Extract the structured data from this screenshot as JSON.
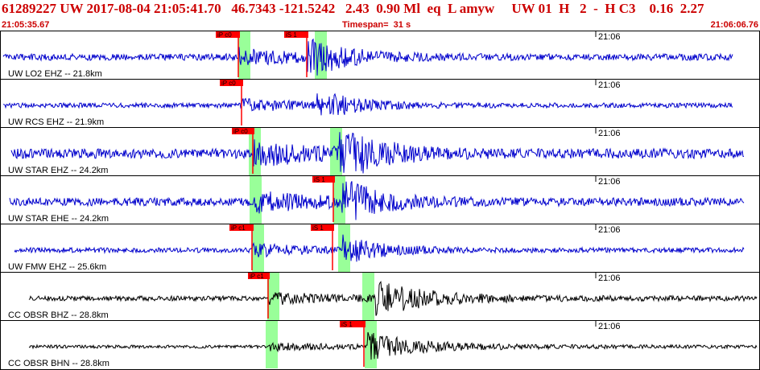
{
  "header": {
    "title_line": "61289227 UW 2017-08-04 21:05:41.70   46.7343 -121.5242   2.43  0.90 Ml  eq  L amyw     UW 01  H   2  -  H C3    0.16  2.27",
    "start_time": "21:05:35.67",
    "timespan": "Timespan=  31 s",
    "end_time": "21:06:06.76"
  },
  "colors": {
    "header_text": "#cc0000",
    "trace_blue": "#0000cc",
    "trace_black": "#000000",
    "pick_red": "#ff0000",
    "window_green": "#99ff99"
  },
  "traces": [
    {
      "label": "UW LO2 EHZ -- 21.8km",
      "time_tick": "21:06",
      "picks": [
        {
          "text": "iP c0"
        },
        {
          "text": "iS 1"
        }
      ]
    },
    {
      "label": "UW RCS EHZ -- 21.9km",
      "time_tick": "21:06",
      "picks": [
        {
          "text": "iP c0"
        }
      ]
    },
    {
      "label": "UW STAR EHZ -- 24.2km",
      "time_tick": "21:06",
      "picks": [
        {
          "text": "iP c0"
        }
      ]
    },
    {
      "label": "UW STAR EHE -- 24.2km",
      "time_tick": "21:06",
      "picks": [
        {
          "text": "iS 1"
        }
      ]
    },
    {
      "label": "UW FMW EHZ -- 25.6km",
      "time_tick": "21:06",
      "picks": [
        {
          "text": "iP c1"
        },
        {
          "text": "iS 1"
        }
      ]
    },
    {
      "label": "CC OBSR BHZ -- 28.8km",
      "time_tick": "21:06",
      "picks": [
        {
          "text": "iP c1"
        }
      ]
    },
    {
      "label": "CC OBSR BHN -- 28.8km",
      "time_tick": "21:06",
      "picks": [
        {
          "text": "iS 1"
        }
      ]
    }
  ]
}
